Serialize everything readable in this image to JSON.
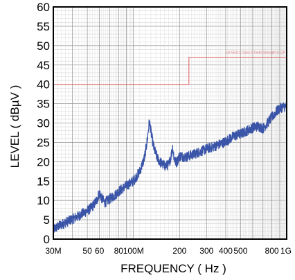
{
  "chart_data": {
    "type": "line",
    "xlabel": "FREQUENCY ( Hz )",
    "ylabel": "LEVEL ( dBµV )",
    "xscale": "log",
    "xlim": [
      30000000,
      1000000000
    ],
    "ylim": [
      0,
      60
    ],
    "grid": true,
    "y_ticks": [
      {
        "value": 0,
        "label": "0"
      },
      {
        "value": 5,
        "label": "5"
      },
      {
        "value": 10,
        "label": "10"
      },
      {
        "value": 15,
        "label": "15"
      },
      {
        "value": 20,
        "label": "20"
      },
      {
        "value": 25,
        "label": "25"
      },
      {
        "value": 30,
        "label": "30"
      },
      {
        "value": 35,
        "label": "35"
      },
      {
        "value": 40,
        "label": "40"
      },
      {
        "value": 45,
        "label": "45"
      },
      {
        "value": 50,
        "label": "50"
      },
      {
        "value": 55,
        "label": "55"
      },
      {
        "value": 60,
        "label": "60"
      }
    ],
    "x_ticks": [
      {
        "value": 30000000,
        "label": "30M"
      },
      {
        "value": 50000000,
        "label": "50"
      },
      {
        "value": 60000000,
        "label": "60"
      },
      {
        "value": 80000000,
        "label": "80"
      },
      {
        "value": 100000000,
        "label": "100M"
      },
      {
        "value": 200000000,
        "label": "200"
      },
      {
        "value": 300000000,
        "label": "300"
      },
      {
        "value": 400000000,
        "label": "400"
      },
      {
        "value": 500000000,
        "label": "500"
      },
      {
        "value": 800000000,
        "label": "800"
      },
      {
        "value": 1000000000,
        "label": "1G"
      }
    ],
    "limit_line": {
      "color": "#e07070",
      "label": "EN 55011 Class A Field Strength in QP",
      "points": [
        [
          30000000,
          40
        ],
        [
          230000000,
          40
        ],
        [
          230000000,
          47
        ],
        [
          1000000000,
          47
        ]
      ]
    },
    "series": [
      {
        "color": "#3a55a8",
        "points": [
          [
            30000000,
            2.5
          ],
          [
            33000000,
            3.5
          ],
          [
            36000000,
            4.3
          ],
          [
            40000000,
            5.2
          ],
          [
            44000000,
            6.0
          ],
          [
            48000000,
            6.9
          ],
          [
            52000000,
            7.8
          ],
          [
            55000000,
            8.8
          ],
          [
            58000000,
            10.3
          ],
          [
            60000000,
            12.0
          ],
          [
            62000000,
            10.6
          ],
          [
            65000000,
            9.4
          ],
          [
            70000000,
            10.4
          ],
          [
            75000000,
            11.2
          ],
          [
            80000000,
            12.3
          ],
          [
            90000000,
            13.8
          ],
          [
            100000000,
            15.0
          ],
          [
            110000000,
            17.5
          ],
          [
            118000000,
            21.0
          ],
          [
            123000000,
            25.5
          ],
          [
            127000000,
            30.5
          ],
          [
            131000000,
            27.0
          ],
          [
            136000000,
            23.5
          ],
          [
            143000000,
            21.0
          ],
          [
            150000000,
            19.8
          ],
          [
            160000000,
            18.9
          ],
          [
            170000000,
            19.2
          ],
          [
            176000000,
            21.5
          ],
          [
            180000000,
            23.8
          ],
          [
            184000000,
            21.0
          ],
          [
            190000000,
            19.6
          ],
          [
            200000000,
            21.5
          ],
          [
            220000000,
            21.2
          ],
          [
            250000000,
            22.0
          ],
          [
            300000000,
            23.3
          ],
          [
            350000000,
            24.2
          ],
          [
            400000000,
            25.2
          ],
          [
            450000000,
            26.6
          ],
          [
            500000000,
            27.2
          ],
          [
            550000000,
            28.0
          ],
          [
            600000000,
            28.8
          ],
          [
            650000000,
            29.2
          ],
          [
            700000000,
            28.6
          ],
          [
            750000000,
            30.0
          ],
          [
            800000000,
            31.5
          ],
          [
            850000000,
            32.8
          ],
          [
            900000000,
            33.8
          ],
          [
            950000000,
            34.2
          ],
          [
            1000000000,
            34.3
          ]
        ]
      }
    ]
  }
}
